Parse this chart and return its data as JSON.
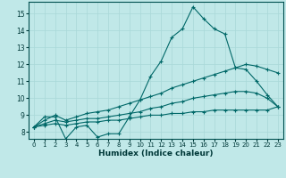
{
  "title": "",
  "xlabel": "Humidex (Indice chaleur)",
  "ylabel": "",
  "background_color": "#c0e8e8",
  "line_color": "#006868",
  "grid_color": "#a8d8d8",
  "x_ticks": [
    0,
    1,
    2,
    3,
    4,
    5,
    6,
    7,
    8,
    9,
    10,
    11,
    12,
    13,
    14,
    15,
    16,
    17,
    18,
    19,
    20,
    21,
    22,
    23
  ],
  "y_ticks": [
    8,
    9,
    10,
    11,
    12,
    13,
    14,
    15
  ],
  "ylim": [
    7.6,
    15.7
  ],
  "xlim": [
    -0.5,
    23.5
  ],
  "series": [
    {
      "x": [
        0,
        1,
        2,
        3,
        4,
        5,
        6,
        7,
        8,
        9,
        10,
        11,
        12,
        13,
        14,
        15,
        16,
        17,
        18,
        19,
        20,
        21,
        22,
        23
      ],
      "y": [
        8.3,
        8.9,
        8.9,
        7.6,
        8.3,
        8.4,
        7.7,
        7.9,
        7.9,
        8.9,
        9.9,
        11.3,
        12.2,
        13.6,
        14.1,
        15.4,
        14.7,
        14.1,
        13.8,
        11.8,
        11.7,
        11.0,
        10.2,
        9.5
      ]
    },
    {
      "x": [
        0,
        1,
        2,
        3,
        4,
        5,
        6,
        7,
        8,
        9,
        10,
        11,
        12,
        13,
        14,
        15,
        16,
        17,
        18,
        19,
        20,
        21,
        22,
        23
      ],
      "y": [
        8.3,
        8.7,
        9.0,
        8.7,
        8.9,
        9.1,
        9.2,
        9.3,
        9.5,
        9.7,
        9.9,
        10.1,
        10.3,
        10.6,
        10.8,
        11.0,
        11.2,
        11.4,
        11.6,
        11.8,
        12.0,
        11.9,
        11.7,
        11.5
      ]
    },
    {
      "x": [
        0,
        1,
        2,
        3,
        4,
        5,
        6,
        7,
        8,
        9,
        10,
        11,
        12,
        13,
        14,
        15,
        16,
        17,
        18,
        19,
        20,
        21,
        22,
        23
      ],
      "y": [
        8.3,
        8.5,
        8.7,
        8.6,
        8.7,
        8.8,
        8.8,
        8.9,
        9.0,
        9.1,
        9.2,
        9.4,
        9.5,
        9.7,
        9.8,
        10.0,
        10.1,
        10.2,
        10.3,
        10.4,
        10.4,
        10.3,
        10.0,
        9.5
      ]
    },
    {
      "x": [
        0,
        1,
        2,
        3,
        4,
        5,
        6,
        7,
        8,
        9,
        10,
        11,
        12,
        13,
        14,
        15,
        16,
        17,
        18,
        19,
        20,
        21,
        22,
        23
      ],
      "y": [
        8.3,
        8.4,
        8.5,
        8.4,
        8.5,
        8.6,
        8.6,
        8.7,
        8.7,
        8.8,
        8.9,
        9.0,
        9.0,
        9.1,
        9.1,
        9.2,
        9.2,
        9.3,
        9.3,
        9.3,
        9.3,
        9.3,
        9.3,
        9.5
      ]
    }
  ]
}
